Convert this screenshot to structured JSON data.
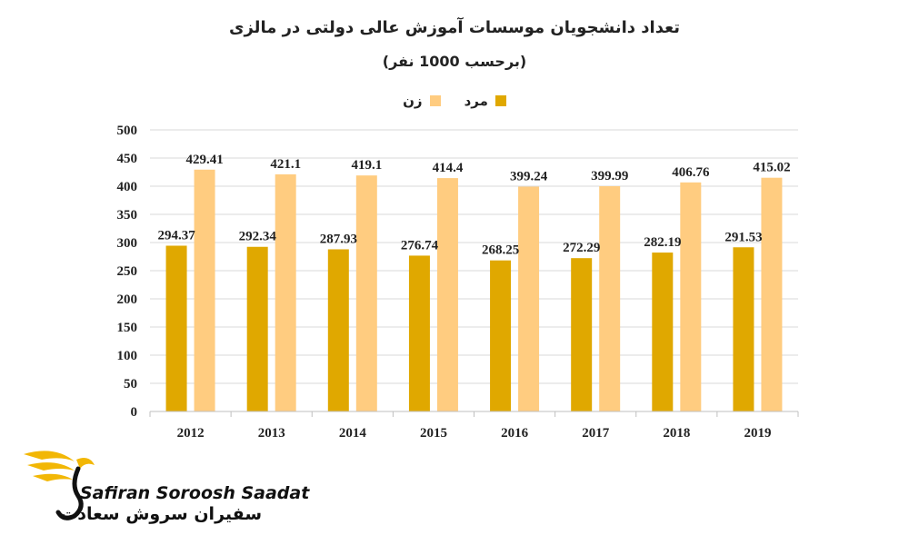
{
  "chart_data": {
    "type": "bar",
    "title": "تعداد دانشجویان موسسات آموزش عالی دولتی در مالزی",
    "subtitle": "(برحسب 1000 نفر)",
    "categories": [
      "2012",
      "2013",
      "2014",
      "2015",
      "2016",
      "2017",
      "2018",
      "2019"
    ],
    "series": [
      {
        "name": "مرد",
        "color": "#E0A800",
        "values": [
          294.37,
          292.34,
          287.93,
          276.74,
          268.25,
          272.29,
          282.19,
          291.53
        ]
      },
      {
        "name": "زن",
        "color": "#FFCC80",
        "values": [
          429.41,
          421.1,
          419.1,
          414.4,
          399.24,
          399.99,
          406.76,
          415.02
        ]
      }
    ],
    "data_labels": [
      [
        "294.37",
        "292.34",
        "287.93",
        "276.74",
        "268.25",
        "272.29",
        "282.19",
        "291.53"
      ],
      [
        "429.41",
        "421.1",
        "419.1",
        "414.4",
        "399.24",
        "399.99",
        "406.76",
        "415.02"
      ]
    ],
    "ylim": [
      0,
      500
    ],
    "yticks": [
      "0",
      "50",
      "100",
      "150",
      "200",
      "250",
      "300",
      "350",
      "400",
      "450",
      "500"
    ],
    "grid": true,
    "legend_position": "top-center"
  },
  "logo": {
    "name_en": "Safiran Soroosh Saadat",
    "name_fa": "سفیران سروش سعادت",
    "accent_color": "#F2B705"
  }
}
